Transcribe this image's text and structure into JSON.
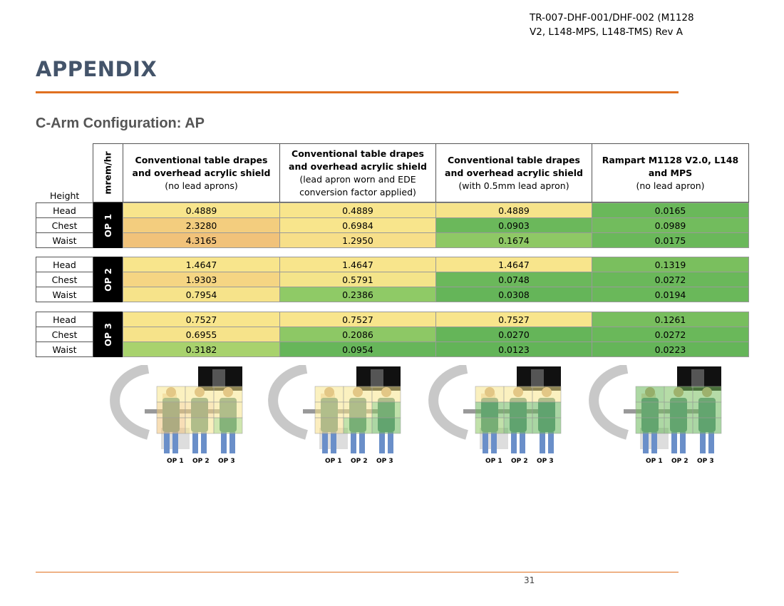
{
  "header": {
    "doc_id_line1": "TR-007-DHF-001/DHF-002 (M1128",
    "doc_id_line2": "V2, L148-MPS, L148-TMS) Rev A"
  },
  "title": "APPENDIX",
  "subtitle": "C-Arm Configuration: AP",
  "table": {
    "height_label": "Height",
    "unit_label": "mrem/hr",
    "columns": [
      {
        "bold": "Conventional table drapes and overhead acrylic shield",
        "normal": "(no lead aprons)"
      },
      {
        "bold": "Conventional table drapes and overhead acrylic shield",
        "normal": "(lead apron worn and EDE conversion factor applied)"
      },
      {
        "bold": "Conventional table drapes and overhead acrylic shield",
        "normal": "(with 0.5mm lead apron)"
      },
      {
        "bold": "Rampart M1128 V2.0, L148 and MPS",
        "normal": "(no lead apron)"
      }
    ],
    "groups": [
      {
        "label": "OP 1",
        "rows": [
          {
            "height": "Head",
            "values": [
              "0.4889",
              "0.4889",
              "0.4889",
              "0.0165"
            ],
            "colors": [
              "#f8e58c",
              "#f8e58c",
              "#f6e38a",
              "#6ab85a"
            ]
          },
          {
            "height": "Chest",
            "values": [
              "2.3280",
              "0.6984",
              "0.0903",
              "0.0989"
            ],
            "colors": [
              "#f3cd7e",
              "#f8e58c",
              "#6bb85b",
              "#72bc5d"
            ]
          },
          {
            "height": "Waist",
            "values": [
              "4.3165",
              "1.2950",
              "0.1674",
              "0.0175"
            ],
            "colors": [
              "#f1c27a",
              "#f7df89",
              "#8ec865",
              "#6ab85a"
            ]
          }
        ]
      },
      {
        "label": "OP 2",
        "rows": [
          {
            "height": "Head",
            "values": [
              "1.4647",
              "1.4647",
              "1.4647",
              "0.1319"
            ],
            "colors": [
              "#f8e58c",
              "#f8e58c",
              "#f8e58c",
              "#7abf5e"
            ]
          },
          {
            "height": "Chest",
            "values": [
              "1.9303",
              "0.5791",
              "0.0748",
              "0.0272"
            ],
            "colors": [
              "#f5d583",
              "#f4e48a",
              "#6bb85b",
              "#6ab85a"
            ]
          },
          {
            "height": "Waist",
            "values": [
              "0.7954",
              "0.2386",
              "0.0308",
              "0.0194"
            ],
            "colors": [
              "#f6e38a",
              "#8fca66",
              "#65b559",
              "#6ab85a"
            ]
          }
        ]
      },
      {
        "label": "OP 3",
        "rows": [
          {
            "height": "Head",
            "values": [
              "0.7527",
              "0.7527",
              "0.7527",
              "0.1261"
            ],
            "colors": [
              "#f8e58c",
              "#f8e58c",
              "#f8e58c",
              "#78be5e"
            ]
          },
          {
            "height": "Chest",
            "values": [
              "0.6955",
              "0.2086",
              "0.0270",
              "0.0272"
            ],
            "colors": [
              "#f6e38a",
              "#8dc865",
              "#65b559",
              "#6ab85a"
            ]
          },
          {
            "height": "Waist",
            "values": [
              "0.3182",
              "0.0954",
              "0.0123",
              "0.0223"
            ],
            "colors": [
              "#a8d26d",
              "#67b65a",
              "#63b458",
              "#65b559"
            ]
          }
        ]
      }
    ]
  },
  "figures": [
    {
      "labels": [
        "OP 1",
        "OP 2",
        "OP 3"
      ]
    },
    {
      "labels": [
        "OP 1",
        "OP 2",
        "OP 3"
      ]
    },
    {
      "labels": [
        "OP 1",
        "OP 2",
        "OP 3"
      ]
    },
    {
      "labels": [
        "OP 1",
        "OP 2",
        "OP 3"
      ]
    }
  ],
  "footer": {
    "page_number": "31"
  }
}
